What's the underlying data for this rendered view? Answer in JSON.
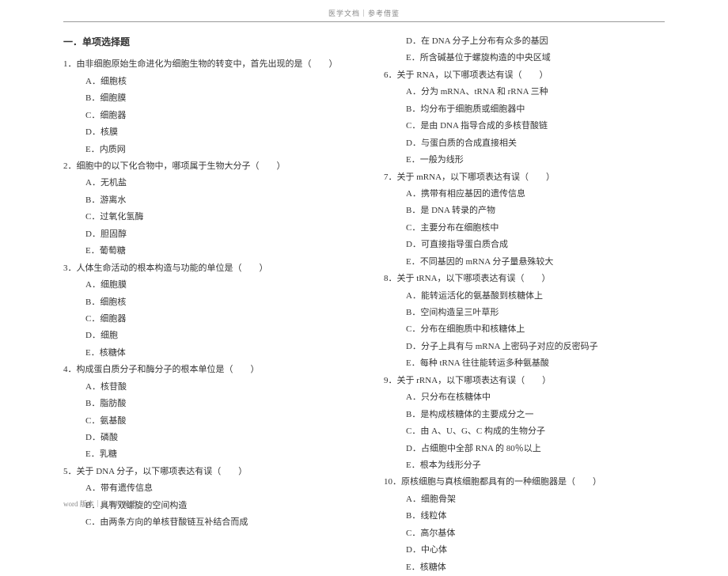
{
  "header": "医学文档｜参考借鉴",
  "footer": "word 版本｜实用可编辑",
  "sectionTitle": "一．单项选择题",
  "col1": [
    {
      "cls": "q-stem",
      "t": "1．由非细胞原始生命进化为细胞生物的转变中，首先出现的是（　　）"
    },
    {
      "cls": "indent1",
      "t": "A．细胞核"
    },
    {
      "cls": "indent1",
      "t": "B．细胞膜"
    },
    {
      "cls": "indent1",
      "t": "C．细胞器"
    },
    {
      "cls": "indent1",
      "t": "D．核膜"
    },
    {
      "cls": "indent1",
      "t": "E．内质网"
    },
    {
      "cls": "q-stem",
      "t": "2．细胞中的以下化合物中，哪项属于生物大分子（　　）"
    },
    {
      "cls": "indent1",
      "t": "A．无机盐"
    },
    {
      "cls": "indent1",
      "t": "B．游离水"
    },
    {
      "cls": "indent1",
      "t": "C．过氧化氢酶"
    },
    {
      "cls": "indent1",
      "t": "D．胆固醇"
    },
    {
      "cls": "indent1",
      "t": "E．葡萄糖"
    },
    {
      "cls": "q-stem",
      "t": "3．人体生命活动的根本构造与功能的单位是（　　）"
    },
    {
      "cls": "indent1",
      "t": "A．细胞膜"
    },
    {
      "cls": "indent1",
      "t": "B．细胞核"
    },
    {
      "cls": "indent1",
      "t": "C．细胞器"
    },
    {
      "cls": "indent1",
      "t": "D．细胞"
    },
    {
      "cls": "indent1",
      "t": "E．核糖体"
    },
    {
      "cls": "q-stem",
      "t": "4．构成蛋白质分子和酶分子的根本单位是（　　）"
    },
    {
      "cls": "indent1",
      "t": "A．核苷酸"
    },
    {
      "cls": "indent1",
      "t": "B．脂肪酸"
    },
    {
      "cls": "indent1",
      "t": "C．氨基酸"
    },
    {
      "cls": "indent1",
      "t": "D．磷酸"
    },
    {
      "cls": "indent1",
      "t": "E．乳糖"
    },
    {
      "cls": "q-stem",
      "t": "5．关于 DNA 分子，以下哪项表达有误（　　）"
    },
    {
      "cls": "indent1",
      "t": "A．带有遗传信息"
    },
    {
      "cls": "indent1",
      "t": "B．具有双螺旋的空间构造"
    },
    {
      "cls": "indent1",
      "t": "C．由两条方向的单核苷酸链互补结合而成"
    }
  ],
  "col2": [
    {
      "cls": "indent1",
      "t": "D．在 DNA 分子上分布有众多的基因"
    },
    {
      "cls": "indent1",
      "t": "E．所含碱基位于螺旋构造的中央区域"
    },
    {
      "cls": "q-stem",
      "t": "6．关于 RNA，以下哪项表达有误（　　）"
    },
    {
      "cls": "indent1",
      "t": "A．分为 mRNA、tRNA 和 rRNA 三种"
    },
    {
      "cls": "indent1",
      "t": "B．均分布于细胞质或细胞器中"
    },
    {
      "cls": "indent1",
      "t": "C．是由 DNA 指导合成的多核苷酸链"
    },
    {
      "cls": "indent1",
      "t": "D．与蛋白质的合成直接相关"
    },
    {
      "cls": "indent1",
      "t": "E．一般为线形"
    },
    {
      "cls": "q-stem",
      "t": "7．关于 mRNA，以下哪项表达有误（　　）"
    },
    {
      "cls": "indent1",
      "t": "A．携带有相应基因的遗传信息"
    },
    {
      "cls": "indent1",
      "t": "B．是 DNA 转录的产物"
    },
    {
      "cls": "indent1",
      "t": "C．主要分布在细胞核中"
    },
    {
      "cls": "indent1",
      "t": "D．可直接指导蛋白质合成"
    },
    {
      "cls": "indent1",
      "t": "E．不同基因的 mRNA 分子量悬殊较大"
    },
    {
      "cls": "q-stem",
      "t": "8．关于 tRNA，以下哪项表达有误（　　）"
    },
    {
      "cls": "indent1",
      "t": "A．能转运活化的氨基酸到核糖体上"
    },
    {
      "cls": "indent1",
      "t": "B．空间构造呈三叶草形"
    },
    {
      "cls": "indent1",
      "t": "C．分布在细胞质中和核糖体上"
    },
    {
      "cls": "indent1",
      "t": "D．分子上具有与 mRNA 上密码子对应的反密码子"
    },
    {
      "cls": "indent1",
      "t": "E．每种 tRNA 往往能转运多种氨基酸"
    },
    {
      "cls": "q-stem",
      "t": "9．关于 rRNA，以下哪项表达有误（　　）"
    },
    {
      "cls": "indent1",
      "t": "A．只分布在核糖体中"
    },
    {
      "cls": "indent1",
      "t": "B．是构成核糖体的主要成分之一"
    },
    {
      "cls": "indent1",
      "t": "C．由 A、U、G、C 构成的生物分子"
    },
    {
      "cls": "indent1",
      "t": "D．占细胞中全部 RNA 的 80％以上"
    },
    {
      "cls": "indent1",
      "t": "E．根本为线形分子"
    },
    {
      "cls": "q-stem",
      "t": "10．原核细胞与真核细胞都具有的一种细胞器是（　　）"
    },
    {
      "cls": "indent1",
      "t": "A．细胞骨架"
    },
    {
      "cls": "indent1",
      "t": "B．线粒体"
    },
    {
      "cls": "indent1",
      "t": "C．高尔基体"
    },
    {
      "cls": "indent1",
      "t": "D．中心体"
    },
    {
      "cls": "indent1",
      "t": "E．核糖体"
    }
  ]
}
